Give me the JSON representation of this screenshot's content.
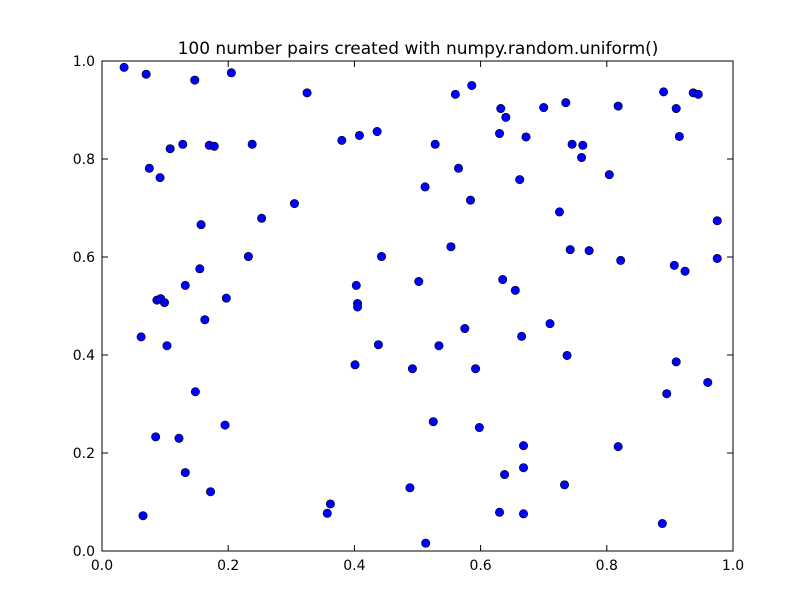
{
  "chart_data": {
    "type": "scatter",
    "title": "100 number pairs created with numpy.random.uniform()",
    "xlabel": "",
    "ylabel": "",
    "xlim": [
      0.0,
      1.0
    ],
    "ylim": [
      0.0,
      1.0
    ],
    "xticks": [
      "0.0",
      "0.2",
      "0.4",
      "0.6",
      "0.8",
      "1.0"
    ],
    "yticks": [
      "0.0",
      "0.2",
      "0.4",
      "0.6",
      "0.8",
      "1.0"
    ],
    "grid": false,
    "marker_color": "#0000ff",
    "points": [
      [
        0.035,
        0.987
      ],
      [
        0.07,
        0.973
      ],
      [
        0.147,
        0.961
      ],
      [
        0.205,
        0.976
      ],
      [
        0.325,
        0.935
      ],
      [
        0.586,
        0.95
      ],
      [
        0.89,
        0.937
      ],
      [
        0.937,
        0.935
      ],
      [
        0.945,
        0.932
      ],
      [
        0.56,
        0.932
      ],
      [
        0.632,
        0.903
      ],
      [
        0.64,
        0.885
      ],
      [
        0.7,
        0.905
      ],
      [
        0.735,
        0.915
      ],
      [
        0.818,
        0.908
      ],
      [
        0.91,
        0.903
      ],
      [
        0.915,
        0.846
      ],
      [
        0.108,
        0.821
      ],
      [
        0.128,
        0.83
      ],
      [
        0.17,
        0.828
      ],
      [
        0.178,
        0.826
      ],
      [
        0.238,
        0.83
      ],
      [
        0.38,
        0.838
      ],
      [
        0.408,
        0.848
      ],
      [
        0.436,
        0.856
      ],
      [
        0.528,
        0.83
      ],
      [
        0.63,
        0.852
      ],
      [
        0.672,
        0.845
      ],
      [
        0.745,
        0.83
      ],
      [
        0.762,
        0.828
      ],
      [
        0.76,
        0.803
      ],
      [
        0.075,
        0.781
      ],
      [
        0.092,
        0.762
      ],
      [
        0.565,
        0.781
      ],
      [
        0.662,
        0.758
      ],
      [
        0.804,
        0.768
      ],
      [
        0.512,
        0.743
      ],
      [
        0.584,
        0.716
      ],
      [
        0.305,
        0.709
      ],
      [
        0.253,
        0.679
      ],
      [
        0.157,
        0.666
      ],
      [
        0.725,
        0.692
      ],
      [
        0.975,
        0.674
      ],
      [
        0.232,
        0.601
      ],
      [
        0.443,
        0.601
      ],
      [
        0.553,
        0.621
      ],
      [
        0.742,
        0.615
      ],
      [
        0.772,
        0.613
      ],
      [
        0.822,
        0.593
      ],
      [
        0.907,
        0.583
      ],
      [
        0.924,
        0.571
      ],
      [
        0.975,
        0.597
      ],
      [
        0.155,
        0.576
      ],
      [
        0.132,
        0.542
      ],
      [
        0.403,
        0.542
      ],
      [
        0.502,
        0.55
      ],
      [
        0.635,
        0.554
      ],
      [
        0.655,
        0.532
      ],
      [
        0.087,
        0.512
      ],
      [
        0.093,
        0.515
      ],
      [
        0.099,
        0.507
      ],
      [
        0.197,
        0.516
      ],
      [
        0.405,
        0.505
      ],
      [
        0.405,
        0.498
      ],
      [
        0.163,
        0.472
      ],
      [
        0.062,
        0.437
      ],
      [
        0.103,
        0.419
      ],
      [
        0.438,
        0.421
      ],
      [
        0.534,
        0.419
      ],
      [
        0.575,
        0.454
      ],
      [
        0.665,
        0.438
      ],
      [
        0.71,
        0.464
      ],
      [
        0.737,
        0.399
      ],
      [
        0.91,
        0.386
      ],
      [
        0.401,
        0.38
      ],
      [
        0.492,
        0.372
      ],
      [
        0.592,
        0.372
      ],
      [
        0.96,
        0.344
      ],
      [
        0.148,
        0.325
      ],
      [
        0.895,
        0.321
      ],
      [
        0.525,
        0.264
      ],
      [
        0.598,
        0.252
      ],
      [
        0.195,
        0.257
      ],
      [
        0.085,
        0.233
      ],
      [
        0.122,
        0.23
      ],
      [
        0.668,
        0.215
      ],
      [
        0.818,
        0.213
      ],
      [
        0.132,
        0.16
      ],
      [
        0.638,
        0.156
      ],
      [
        0.668,
        0.17
      ],
      [
        0.733,
        0.135
      ],
      [
        0.488,
        0.129
      ],
      [
        0.172,
        0.121
      ],
      [
        0.362,
        0.096
      ],
      [
        0.357,
        0.077
      ],
      [
        0.065,
        0.072
      ],
      [
        0.63,
        0.079
      ],
      [
        0.668,
        0.076
      ],
      [
        0.888,
        0.056
      ],
      [
        0.513,
        0.016
      ]
    ]
  }
}
